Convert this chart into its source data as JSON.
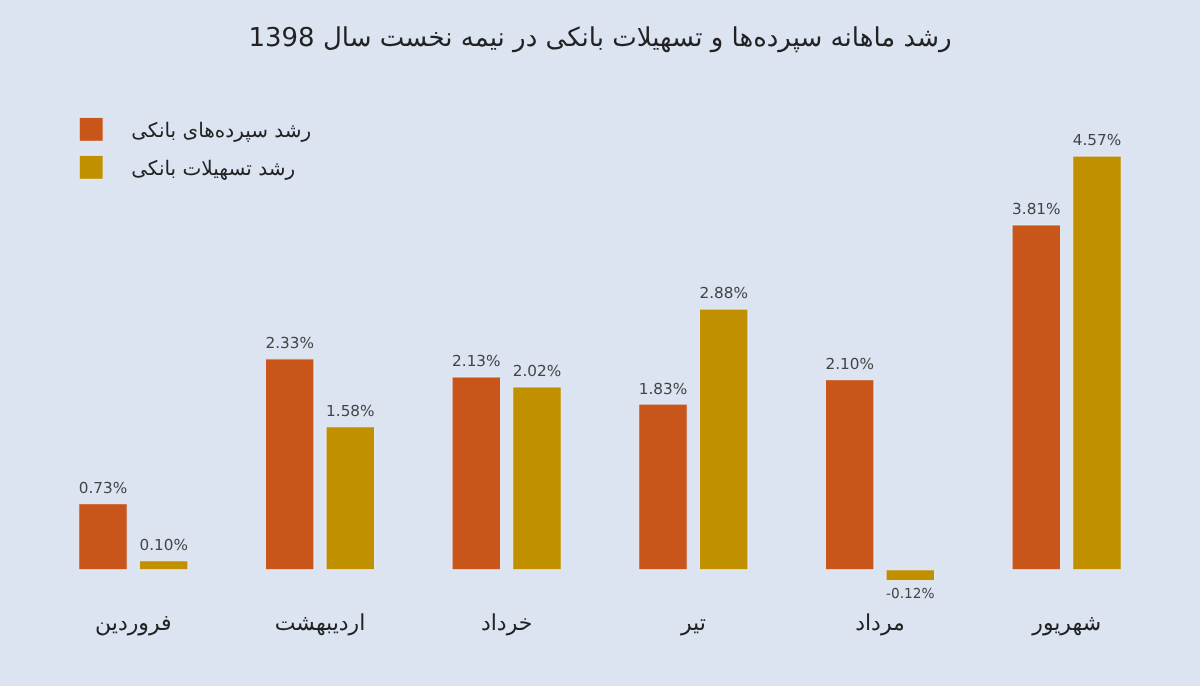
{
  "chart_data": {
    "type": "bar",
    "title": "رشد ماهانه سپرده‌ها و تسهیلات بانکی در نیمه نخست سال 1398",
    "categories": [
      "فروردین",
      "اردیبهشت",
      "خرداد",
      "تیر",
      "مرداد",
      "شهریور"
    ],
    "series": [
      {
        "name": "رشد سپرده‌های بانکی",
        "color": "#c8561a",
        "values": [
          0.73,
          2.33,
          2.13,
          1.83,
          2.1,
          3.81
        ],
        "value_labels": [
          "0.73%",
          "2.33%",
          "2.13%",
          "1.83%",
          "2.10%",
          "3.81%"
        ]
      },
      {
        "name": "رشد تسهیلات بانکی",
        "color": "#c09000",
        "values": [
          0.1,
          1.58,
          2.02,
          2.88,
          -0.12,
          4.57
        ],
        "value_labels": [
          "0.10%",
          "1.58%",
          "2.02%",
          "2.88%",
          "-0.12%",
          "4.57%"
        ]
      }
    ],
    "legend": "top left"
  }
}
